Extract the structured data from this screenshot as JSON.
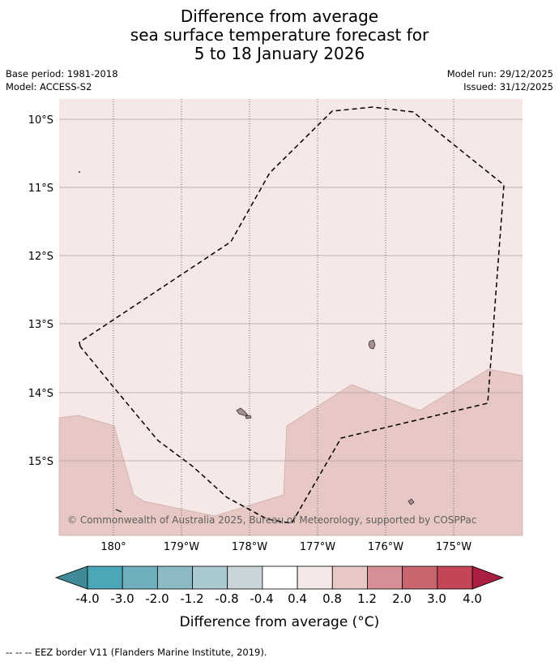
{
  "title_lines": [
    "Difference from average",
    "sea surface temperature forecast for",
    "5 to 18 January 2026"
  ],
  "meta_left": {
    "base_period": "Base period: 1981-2018",
    "model": "Model: ACCESS-S2"
  },
  "meta_right": {
    "model_run": "Model run: 29/12/2025",
    "issued": "Issued: 31/12/2025"
  },
  "axes": {
    "lat_ticks": [
      "10°S",
      "11°S",
      "12°S",
      "13°S",
      "14°S",
      "15°S"
    ],
    "lon_ticks": [
      "180°",
      "179°W",
      "178°W",
      "177°W",
      "176°W",
      "175°W"
    ]
  },
  "copyright": "© Commonwealth of Australia 2025, Bureau of Meteorology, supported by COSPPac",
  "colorbar": {
    "tick_labels": [
      "-4.0",
      "-3.0",
      "-2.0",
      "-1.2",
      "-0.8",
      "-0.4",
      "0.4",
      "0.8",
      "1.2",
      "2.0",
      "3.0",
      "4.0"
    ],
    "colors": [
      "#3e8a98",
      "#4ba6b8",
      "#6eb0bc",
      "#8dbac5",
      "#a9c9cf",
      "#c9d5d8",
      "#ffffff",
      "#f5e8e7",
      "#e7c8c4",
      "#d68f97",
      "#c9656f",
      "#c24656",
      "#aa1e3f"
    ],
    "label": "Difference from average (°C)"
  },
  "legend_note": "-- -- -- EEZ border V11 (Flanders Marine Institute, 2019).",
  "map_colors": {
    "light_anomaly": "#f5e8e7",
    "medium_anomaly": "#e7c8c4",
    "eez_line": "#000000",
    "land": "#a58f91"
  }
}
